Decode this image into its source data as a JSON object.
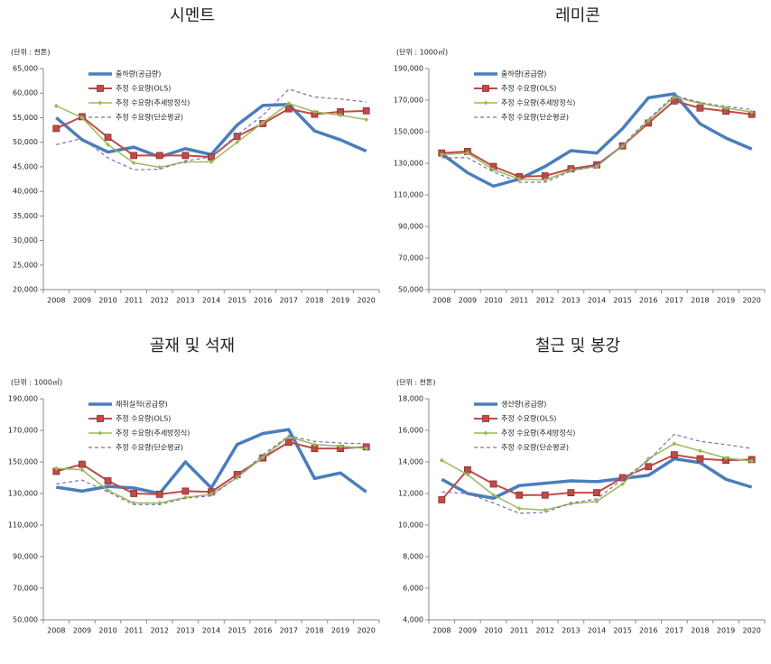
{
  "chart_data": [
    {
      "type": "line",
      "title": "시멘트",
      "y_label": "(단위 : 천톤)",
      "categories": [
        "2008",
        "2009",
        "2010",
        "2011",
        "2012",
        "2013",
        "2014",
        "2015",
        "2016",
        "2017",
        "2018",
        "2019",
        "2020"
      ],
      "ylim": [
        20000,
        65000
      ],
      "yticks": [
        {
          "value": 20000,
          "label": "20,000"
        },
        {
          "value": 25000,
          "label": "25,000"
        },
        {
          "value": 30000,
          "label": "30,000"
        },
        {
          "value": 35000,
          "label": "35,000"
        },
        {
          "value": 40000,
          "label": "40,000"
        },
        {
          "value": 45000,
          "label": "45,000"
        },
        {
          "value": 50000,
          "label": "50,000"
        },
        {
          "value": 55000,
          "label": "55,000"
        },
        {
          "value": 60000,
          "label": "60,000"
        },
        {
          "value": 65000,
          "label": "65,000"
        }
      ],
      "series": [
        {
          "name": "출하량(공급량)",
          "color": "#4a7ebb",
          "line_width": 3.5,
          "values": [
            55000,
            50500,
            48000,
            49000,
            47000,
            48700,
            47500,
            53500,
            57500,
            57700,
            52300,
            50500,
            48200
          ]
        },
        {
          "name": "추정 수요량(OLS)",
          "color": "#be4b48",
          "line_width": 2,
          "marker": "square",
          "values": [
            52800,
            55200,
            51000,
            47300,
            47300,
            47300,
            47000,
            51200,
            53800,
            56800,
            55700,
            56200,
            56400
          ]
        },
        {
          "name": "추정 수요량(추세방정식)",
          "color": "#9bbb59",
          "line_width": 1.5,
          "marker": "diamond",
          "values": [
            57400,
            55000,
            49500,
            45800,
            44900,
            46000,
            46000,
            50000,
            54000,
            57900,
            56200,
            55500,
            54600
          ]
        },
        {
          "name": "추정 수요량(단순평균)",
          "color": "#7e6fb0",
          "line_width": 1.2,
          "dashed": true,
          "values": [
            49500,
            50800,
            46800,
            44400,
            44500,
            46200,
            47000,
            51500,
            55500,
            60800,
            59200,
            58800,
            58200
          ]
        }
      ]
    },
    {
      "type": "line",
      "title": "레미콘",
      "y_label": "(단위 : 1000㎥)",
      "categories": [
        "2008",
        "2009",
        "2010",
        "2011",
        "2012",
        "2013",
        "2014",
        "2015",
        "2016",
        "2017",
        "2018",
        "2019",
        "2020"
      ],
      "ylim": [
        50000,
        190000
      ],
      "yticks": [
        {
          "value": 50000,
          "label": "50,000"
        },
        {
          "value": 70000,
          "label": "70,000"
        },
        {
          "value": 90000,
          "label": "90,000"
        },
        {
          "value": 110000,
          "label": "110,000"
        },
        {
          "value": 130000,
          "label": "130,000"
        },
        {
          "value": 150000,
          "label": "150,000"
        },
        {
          "value": 170000,
          "label": "170,000"
        },
        {
          "value": 190000,
          "label": "190,000"
        }
      ],
      "series": [
        {
          "name": "출하량(공급량)",
          "color": "#4a7ebb",
          "line_width": 3.5,
          "values": [
            136000,
            124000,
            115500,
            120000,
            128000,
            138000,
            136500,
            152000,
            171500,
            174000,
            155000,
            146000,
            139000
          ]
        },
        {
          "name": "추정 수요량(OLS)",
          "color": "#be4b48",
          "line_width": 2,
          "marker": "square",
          "values": [
            136500,
            137500,
            128000,
            121500,
            122000,
            126500,
            129000,
            141000,
            155500,
            169500,
            165000,
            163000,
            161000
          ]
        },
        {
          "name": "추정 수요량(추세방정식)",
          "color": "#9bbb59",
          "line_width": 1.5,
          "marker": "diamond",
          "values": [
            135500,
            136500,
            126000,
            120000,
            119500,
            125500,
            128000,
            141000,
            157000,
            172000,
            168000,
            165000,
            162500
          ]
        },
        {
          "name": "추정 수요량(단순평균)",
          "color": "#7e6fb0",
          "line_width": 1.2,
          "dashed": true,
          "values": [
            133500,
            133500,
            124500,
            118000,
            118000,
            125000,
            128500,
            141500,
            158000,
            173000,
            168500,
            166000,
            164000
          ]
        }
      ]
    },
    {
      "type": "line",
      "title": "골재 및 석재",
      "y_label": "(단위 : 1000㎥)",
      "categories": [
        "2008",
        "2009",
        "2010",
        "2011",
        "2012",
        "2013",
        "2014",
        "2015",
        "2016",
        "2017",
        "2018",
        "2019",
        "2020"
      ],
      "ylim": [
        50000,
        190000
      ],
      "yticks": [
        {
          "value": 50000,
          "label": "50,000"
        },
        {
          "value": 70000,
          "label": "70,000"
        },
        {
          "value": 90000,
          "label": "90,000"
        },
        {
          "value": 110000,
          "label": "110,000"
        },
        {
          "value": 130000,
          "label": "130,000"
        },
        {
          "value": 150000,
          "label": "150,000"
        },
        {
          "value": 170000,
          "label": "170,000"
        },
        {
          "value": 190000,
          "label": "190,000"
        }
      ],
      "series": [
        {
          "name": "채취실적(공급량)",
          "color": "#4a7ebb",
          "line_width": 3.5,
          "values": [
            134000,
            131500,
            134500,
            133500,
            130000,
            150000,
            133500,
            161000,
            168000,
            170500,
            139500,
            143000,
            131000
          ]
        },
        {
          "name": "추정 수요량(OLS)",
          "color": "#be4b48",
          "line_width": 2,
          "marker": "square",
          "values": [
            144000,
            148500,
            138000,
            130000,
            129500,
            131500,
            131000,
            142000,
            152500,
            162500,
            158500,
            158500,
            159500
          ]
        },
        {
          "name": "추정 수요량(추세방정식)",
          "color": "#9bbb59",
          "line_width": 1.5,
          "marker": "diamond",
          "values": [
            146000,
            145000,
            132000,
            124000,
            124000,
            127500,
            129500,
            140000,
            153000,
            166000,
            161000,
            160000,
            158500
          ]
        },
        {
          "name": "추정 수요량(단순평균)",
          "color": "#7e6fb0",
          "line_width": 1.2,
          "dashed": true,
          "values": [
            136000,
            138500,
            131000,
            123000,
            123000,
            127000,
            128500,
            140500,
            154500,
            166500,
            163000,
            162000,
            161500
          ]
        }
      ]
    },
    {
      "type": "line",
      "title": "철근 및 봉강",
      "y_label": "(단위 : 천톤)",
      "categories": [
        "2008",
        "2009",
        "2010",
        "2011",
        "2012",
        "2013",
        "2014",
        "2015",
        "2016",
        "2017",
        "2018",
        "2019",
        "2020"
      ],
      "ylim": [
        4000,
        18000
      ],
      "yticks": [
        {
          "value": 4000,
          "label": "4,000"
        },
        {
          "value": 6000,
          "label": "6,000"
        },
        {
          "value": 8000,
          "label": "8,000"
        },
        {
          "value": 10000,
          "label": "10,000"
        },
        {
          "value": 12000,
          "label": "12,000"
        },
        {
          "value": 14000,
          "label": "14,000"
        },
        {
          "value": 16000,
          "label": "16,000"
        },
        {
          "value": 18000,
          "label": "18,000"
        }
      ],
      "series": [
        {
          "name": "생산량(공급량)",
          "color": "#4a7ebb",
          "line_width": 3.5,
          "values": [
            12900,
            12000,
            11700,
            12500,
            12650,
            12800,
            12750,
            12950,
            13150,
            14200,
            13950,
            12900,
            12400
          ]
        },
        {
          "name": "추정 수요량(OLS)",
          "color": "#be4b48",
          "line_width": 2,
          "marker": "square",
          "values": [
            11600,
            13500,
            12600,
            11900,
            11900,
            12050,
            12050,
            13000,
            13700,
            14450,
            14200,
            14100,
            14150
          ]
        },
        {
          "name": "추정 수요량(추세방정식)",
          "color": "#9bbb59",
          "line_width": 1.5,
          "marker": "diamond",
          "values": [
            14100,
            13200,
            11900,
            11050,
            10950,
            11350,
            11500,
            12600,
            14200,
            15150,
            14700,
            14250,
            14050
          ]
        },
        {
          "name": "추정 수요량(단순평균)",
          "color": "#7e6fb0",
          "line_width": 1.2,
          "dashed": true,
          "values": [
            12100,
            12000,
            11400,
            10750,
            10800,
            11400,
            11650,
            12900,
            14100,
            15750,
            15300,
            15100,
            14850
          ]
        }
      ]
    }
  ]
}
